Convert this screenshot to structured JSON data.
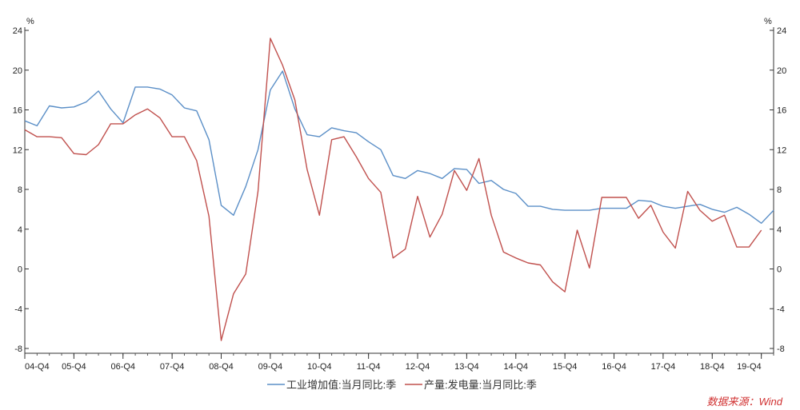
{
  "chart_data": {
    "type": "line",
    "left_unit": "%",
    "right_unit": "%",
    "x_tick_labels": [
      "04-Q4",
      "05-Q4",
      "06-Q4",
      "07-Q4",
      "08-Q4",
      "09-Q4",
      "10-Q4",
      "11-Q4",
      "12-Q4",
      "13-Q4",
      "14-Q4",
      "15-Q4",
      "16-Q4",
      "17-Q4",
      "18-Q4",
      "19-Q4"
    ],
    "y_ticks": [
      -8,
      -4,
      0,
      4,
      8,
      12,
      16,
      20,
      24
    ],
    "ylim": [
      -8,
      24
    ],
    "grid": false,
    "legend_position": "bottom",
    "source": "数据来源：Wind",
    "series": [
      {
        "name": "工业增加值:当月同比:季",
        "color": "#5b8fc7",
        "values": [
          14.9,
          14.4,
          16.4,
          16.2,
          16.3,
          16.8,
          17.9,
          16.1,
          14.7,
          18.3,
          18.3,
          18.1,
          17.5,
          16.2,
          15.9,
          13.0,
          6.4,
          5.4,
          8.3,
          12.0,
          18.0,
          19.9,
          16.1,
          13.5,
          13.3,
          14.2,
          13.9,
          13.7,
          12.8,
          12.0,
          9.4,
          9.1,
          9.9,
          9.6,
          9.1,
          10.1,
          10.0,
          8.6,
          8.9,
          8.0,
          7.6,
          6.3,
          6.3,
          6.0,
          5.9,
          5.9,
          5.9,
          6.1,
          6.1,
          6.1,
          6.9,
          6.8,
          6.3,
          6.1,
          6.3,
          6.5,
          6.0,
          5.7,
          6.2,
          5.5,
          4.6,
          5.9
        ]
      },
      {
        "name": "产量:发电量:当月同比:季",
        "color": "#c0504d",
        "values": [
          14.0,
          13.3,
          13.3,
          13.2,
          11.6,
          11.5,
          12.5,
          14.6,
          14.6,
          15.5,
          16.1,
          15.2,
          13.3,
          13.3,
          10.9,
          5.3,
          -7.2,
          -2.5,
          -0.5,
          7.8,
          23.2,
          20.5,
          17.0,
          10.0,
          5.4,
          13.0,
          13.3,
          11.3,
          9.1,
          7.7,
          1.1,
          2.0,
          7.3,
          3.2,
          5.5,
          9.9,
          7.9,
          11.1,
          5.4,
          1.7,
          1.1,
          0.6,
          0.4,
          -1.3,
          -2.3,
          3.9,
          0.1,
          7.2,
          7.2,
          7.2,
          5.1,
          6.4,
          3.7,
          2.1,
          7.8,
          5.9,
          4.8,
          5.4,
          2.2,
          2.2,
          3.9
        ]
      }
    ]
  }
}
